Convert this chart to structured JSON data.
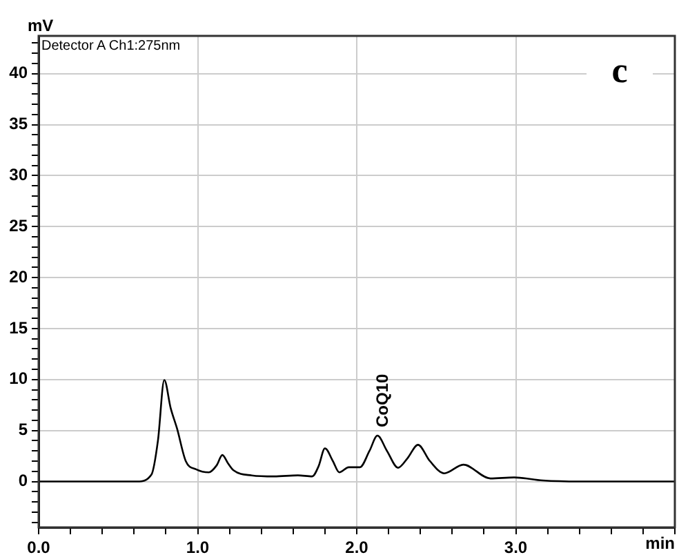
{
  "chart_data": {
    "type": "line",
    "xlabel": "min",
    "ylabel": "mV",
    "color": "#000000",
    "marker": "none",
    "line_style": "solid",
    "grid": true,
    "legend": false,
    "x": [
      0,
      0.62,
      0.71,
      0.75,
      0.79,
      0.83,
      0.87,
      0.925,
      0.99,
      1.07,
      1.12,
      1.155,
      1.19,
      1.225,
      1.34,
      1.48,
      1.63,
      1.72,
      1.76,
      1.8,
      1.85,
      1.89,
      1.95,
      2.02,
      2.08,
      2.13,
      2.19,
      2.26,
      2.32,
      2.385,
      2.46,
      2.55,
      2.67,
      2.84,
      2.99,
      3.17,
      3.4,
      4.0
    ],
    "values": [
      0,
      0,
      0.7,
      4.0,
      9.95,
      7.2,
      5.2,
      2.0,
      1.2,
      0.9,
      1.6,
      2.6,
      1.8,
      1.1,
      0.6,
      0.5,
      0.6,
      0.5,
      1.5,
      3.25,
      2.0,
      0.9,
      1.4,
      1.4,
      3.0,
      4.5,
      3.0,
      1.35,
      2.3,
      3.6,
      2.0,
      0.8,
      1.65,
      0.3,
      0.4,
      0.1,
      0,
      0
    ],
    "xlim": [
      0,
      4
    ],
    "ylim": [
      -4.5,
      43.7
    ],
    "xticks": [
      {
        "value": 0,
        "label": "0.0"
      },
      {
        "value": 0.2,
        "label": null
      },
      {
        "value": 0.4,
        "label": null
      },
      {
        "value": 0.6,
        "label": null
      },
      {
        "value": 0.8,
        "label": null
      },
      {
        "value": 1,
        "label": "1.0"
      },
      {
        "value": 1.2,
        "label": null
      },
      {
        "value": 1.4,
        "label": null
      },
      {
        "value": 1.6,
        "label": null
      },
      {
        "value": 1.8,
        "label": null
      },
      {
        "value": 2,
        "label": "2.0"
      },
      {
        "value": 2.2,
        "label": null
      },
      {
        "value": 2.4,
        "label": null
      },
      {
        "value": 2.6,
        "label": null
      },
      {
        "value": 2.8,
        "label": null
      },
      {
        "value": 3,
        "label": "3.0"
      },
      {
        "value": 3.2,
        "label": null
      },
      {
        "value": 3.4,
        "label": null
      },
      {
        "value": 3.6,
        "label": null
      },
      {
        "value": 3.8,
        "label": null
      },
      {
        "value": 4,
        "label": null
      }
    ],
    "yticks": [
      {
        "value": -4,
        "label": null
      },
      {
        "value": -3,
        "label": null
      },
      {
        "value": -2,
        "label": null
      },
      {
        "value": -1,
        "label": null
      },
      0,
      {
        "value": 1,
        "label": null
      },
      {
        "value": 2,
        "label": null
      },
      {
        "value": 3,
        "label": null
      },
      {
        "value": 4,
        "label": null
      },
      5,
      {
        "value": 6,
        "label": null
      },
      {
        "value": 7,
        "label": null
      },
      {
        "value": 8,
        "label": null
      },
      {
        "value": 9,
        "label": null
      },
      10,
      {
        "value": 11,
        "label": null
      },
      {
        "value": 12,
        "label": null
      },
      {
        "value": 13,
        "label": null
      },
      {
        "value": 14,
        "label": null
      },
      15,
      {
        "value": 16,
        "label": null
      },
      {
        "value": 17,
        "label": null
      },
      {
        "value": 18,
        "label": null
      },
      {
        "value": 19,
        "label": null
      },
      20,
      {
        "value": 21,
        "label": null
      },
      {
        "value": 22,
        "label": null
      },
      {
        "value": 23,
        "label": null
      },
      {
        "value": 24,
        "label": null
      },
      25,
      {
        "value": 26,
        "label": null
      },
      {
        "value": 27,
        "label": null
      },
      {
        "value": 28,
        "label": null
      },
      {
        "value": 29,
        "label": null
      },
      30,
      {
        "value": 31,
        "label": null
      },
      {
        "value": 32,
        "label": null
      },
      {
        "value": 33,
        "label": null
      },
      {
        "value": 34,
        "label": null
      },
      35,
      {
        "value": 36,
        "label": null
      },
      {
        "value": 37,
        "label": null
      },
      {
        "value": 38,
        "label": null
      },
      {
        "value": 39,
        "label": null
      },
      40,
      {
        "value": 41,
        "label": null
      },
      {
        "value": 42,
        "label": null
      },
      {
        "value": 43,
        "label": null
      }
    ],
    "annotations": [
      "Detector A Ch1:275nm",
      "c",
      {
        "text": "CoQ10",
        "x": 2.13,
        "y": 4.5
      }
    ]
  }
}
